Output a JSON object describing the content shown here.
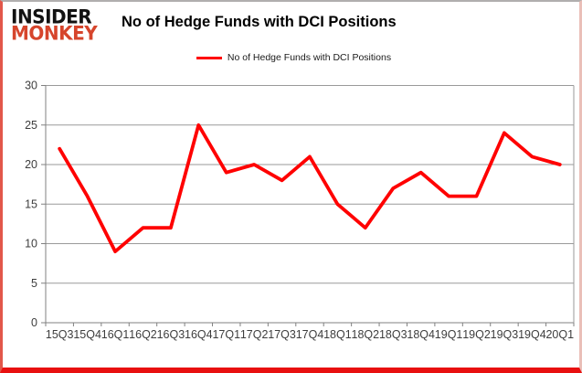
{
  "logo": {
    "line1": "INSIDER",
    "line2": "MONKEY"
  },
  "header": {
    "title": "No of Hedge Funds with DCI Positions"
  },
  "legend": {
    "label": "No of Hedge Funds with DCI Positions",
    "color": "#ff0000"
  },
  "chart_data": {
    "type": "line",
    "title": "No of Hedge Funds with DCI Positions",
    "categories": [
      "15Q3",
      "15Q4",
      "16Q1",
      "16Q2",
      "16Q3",
      "16Q4",
      "17Q1",
      "17Q2",
      "17Q3",
      "17Q4",
      "18Q1",
      "18Q2",
      "18Q3",
      "18Q4",
      "19Q1",
      "19Q2",
      "19Q3",
      "19Q4",
      "20Q1"
    ],
    "series": [
      {
        "name": "No of Hedge Funds with DCI Positions",
        "color": "#ff0000",
        "values": [
          22,
          16,
          9,
          12,
          12,
          25,
          19,
          20,
          18,
          21,
          15,
          12,
          17,
          19,
          16,
          16,
          24,
          21,
          20
        ]
      }
    ],
    "ylim": [
      0,
      30
    ],
    "yticks": [
      0,
      5,
      10,
      15,
      20,
      25,
      30
    ],
    "grid": true,
    "legend_position": "top"
  },
  "colors": {
    "line": "#ff0000",
    "logo_black": "#121212",
    "logo_red": "#d6452c",
    "gridline": "#9a9a9a",
    "axis": "#808080",
    "tick_text": "#3d3d3d",
    "frame_bottom": "#e81010"
  }
}
